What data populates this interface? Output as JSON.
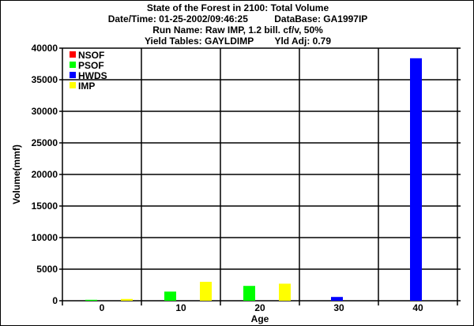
{
  "chart_data": {
    "type": "bar",
    "title": "State of the Forest in 2100: Total Volume",
    "subtitles": [
      "Date/Time: 01-25-2002/09:46:25          DataBase: GA1997IP",
      "Run Name: Raw IMP, 1.2 bill. cf/v, 50%",
      "Yield Tables: GAYLDIMP        Yld Adj: 0.79"
    ],
    "xlabel": "Age",
    "ylabel": "Volume(mmf)",
    "ylim": [
      0,
      40000
    ],
    "yticks": [
      0,
      5000,
      10000,
      15000,
      20000,
      25000,
      30000,
      35000,
      40000
    ],
    "categories": [
      "0",
      "10",
      "20",
      "30",
      "40"
    ],
    "grid": true,
    "legend_position": "top-left",
    "series": [
      {
        "name": "NSOF",
        "color": "#ff0000",
        "values": [
          0,
          0,
          0,
          0,
          0
        ]
      },
      {
        "name": "PSOF",
        "color": "#00ff00",
        "values": [
          150,
          1450,
          2350,
          0,
          0
        ]
      },
      {
        "name": "HWDS",
        "color": "#0000ff",
        "values": [
          0,
          0,
          0,
          600,
          38400
        ]
      },
      {
        "name": "IMP",
        "color": "#ffff00",
        "values": [
          280,
          3000,
          2700,
          0,
          0
        ]
      }
    ]
  }
}
